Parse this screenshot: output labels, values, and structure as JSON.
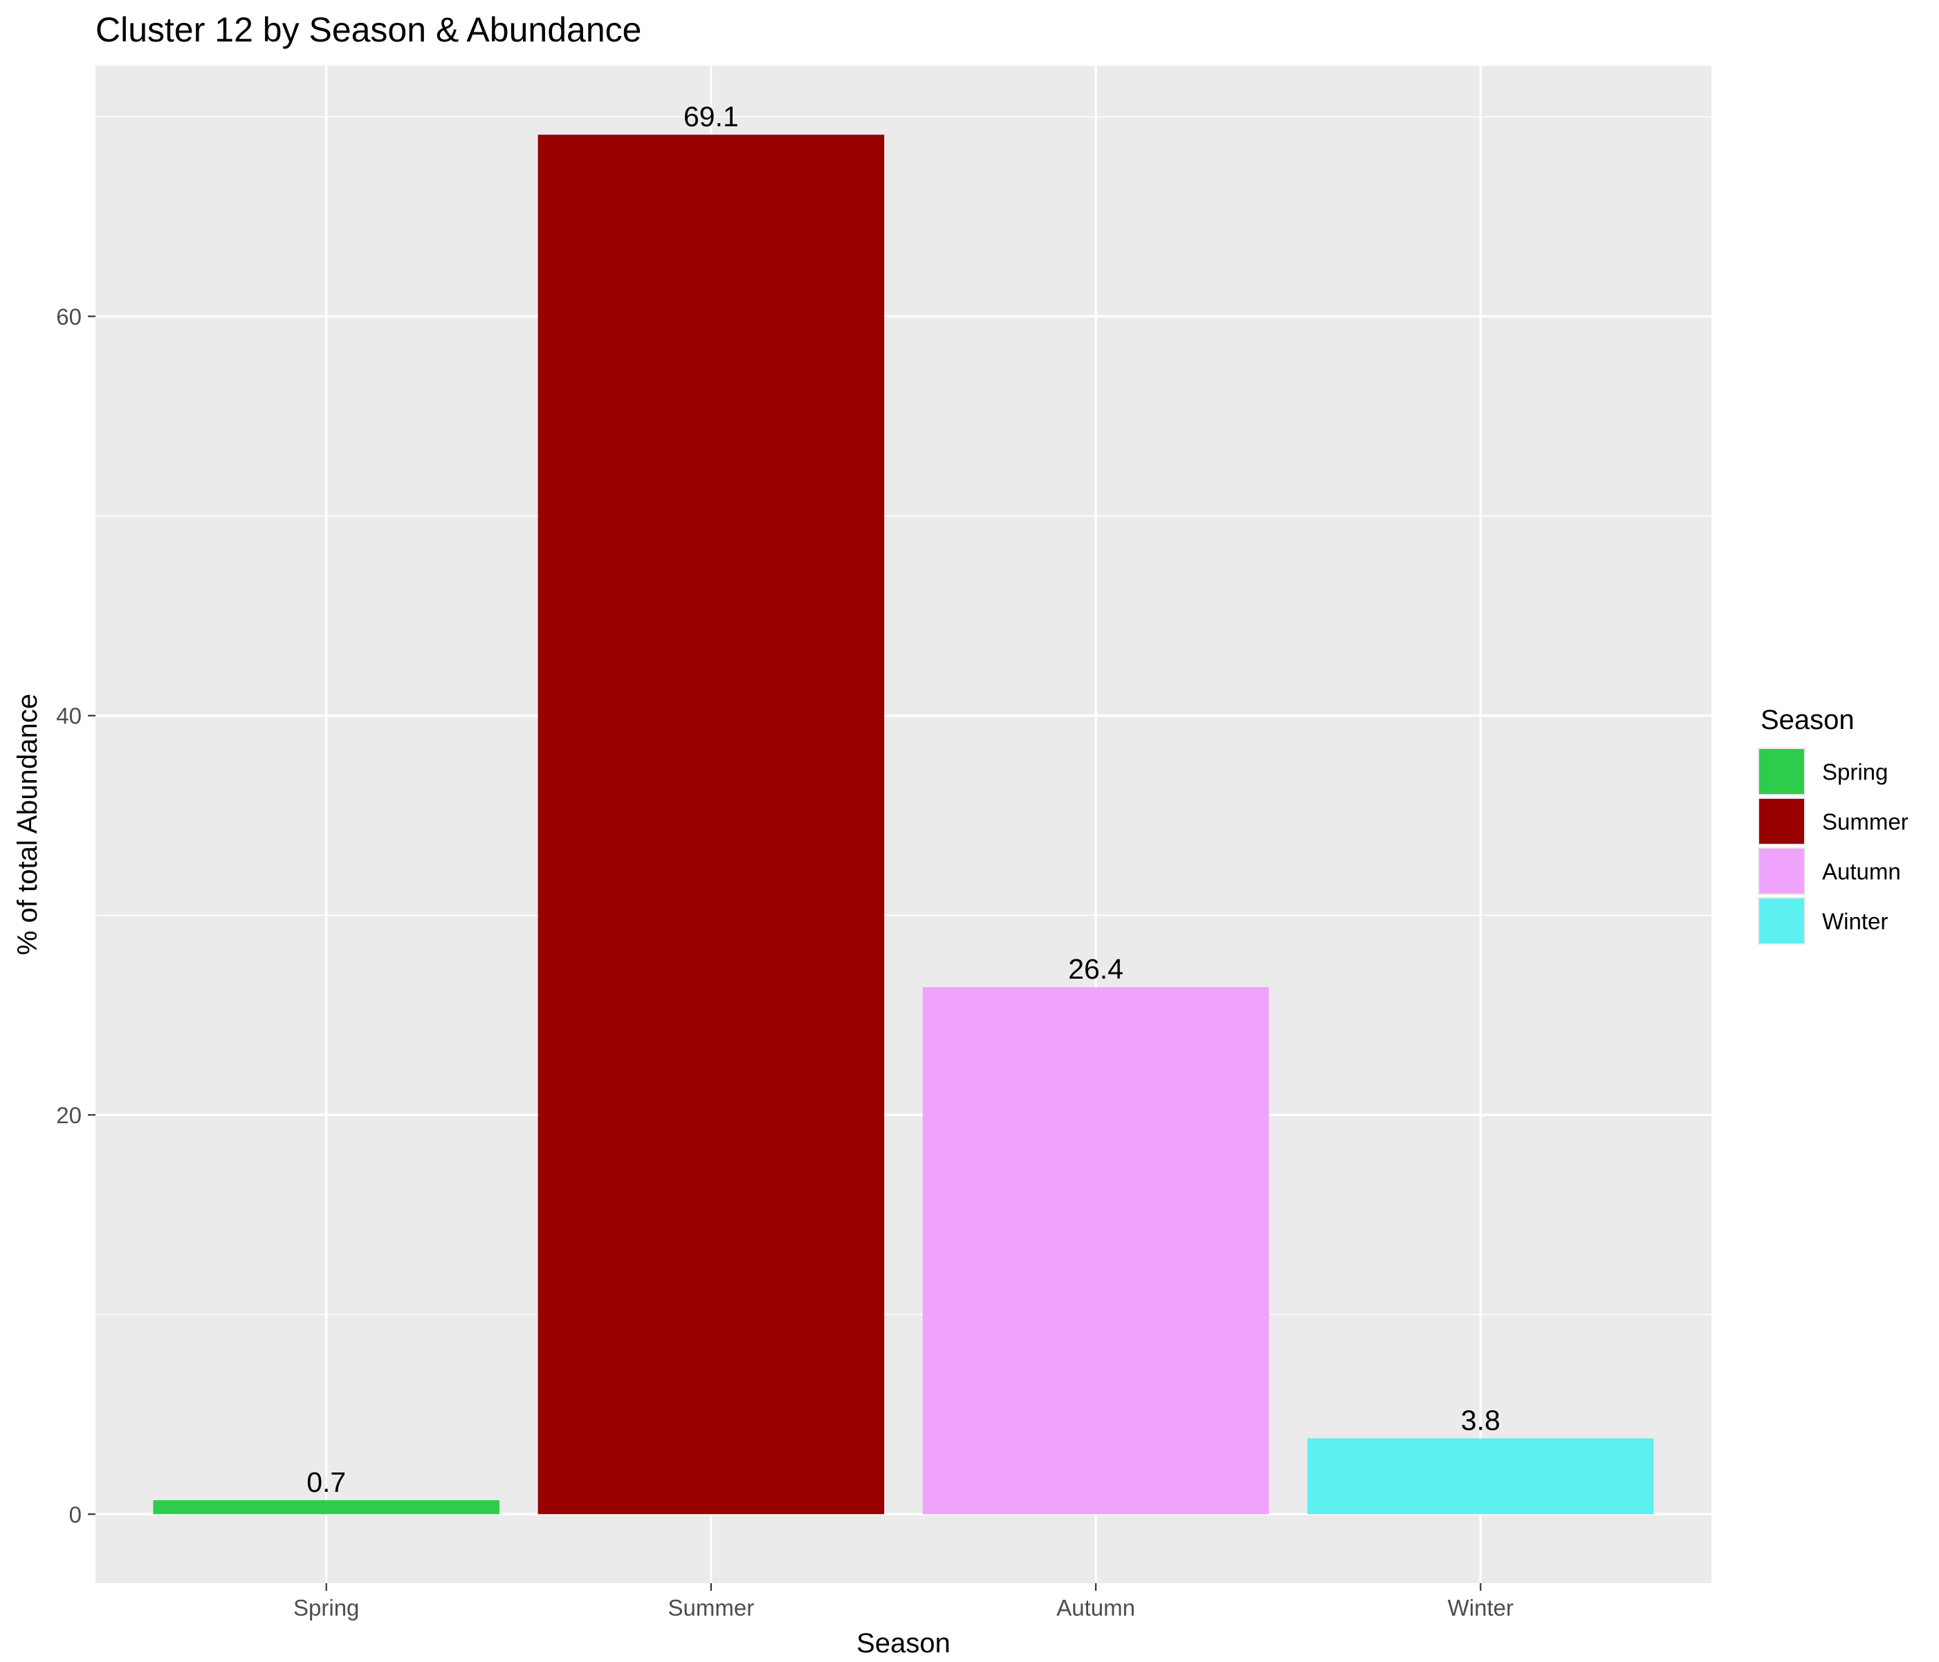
{
  "chart_data": {
    "type": "bar",
    "title": "Cluster 12 by Season & Abundance",
    "xlabel": "Season",
    "ylabel": "% of total Abundance",
    "categories": [
      "Spring",
      "Summer",
      "Autumn",
      "Winter"
    ],
    "values": [
      0.7,
      69.1,
      26.4,
      3.8
    ],
    "data_labels": [
      "0.7",
      "69.1",
      "26.4",
      "3.8"
    ],
    "colors": [
      "#2ECC4B",
      "#990000",
      "#F0A3FC",
      "#5DF0F0"
    ],
    "ylim": [
      -3.455,
      72.555
    ],
    "y_ticks": [
      0,
      20,
      40,
      60
    ],
    "y_tick_labels": [
      "0",
      "20",
      "40",
      "60"
    ],
    "grid": true,
    "panel_background": "#EBEBEB",
    "gridline_color": "#FFFFFF",
    "legend": {
      "title": "Season",
      "position": "right",
      "entries": [
        "Spring",
        "Summer",
        "Autumn",
        "Winter"
      ]
    }
  }
}
